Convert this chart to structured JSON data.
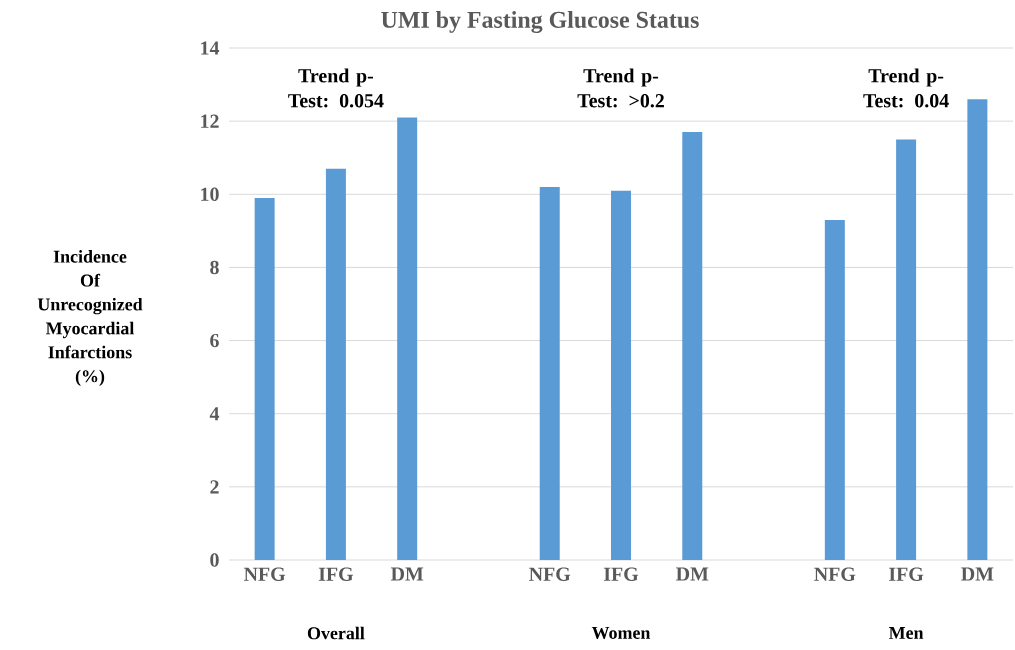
{
  "chart_data": {
    "type": "bar",
    "title": "UMI by Fasting Glucose Status",
    "ylabel": "Incidence Of Unrecognized Myocardial Infarctions (%)",
    "categories": [
      "NFG",
      "IFG",
      "DM",
      null,
      "NFG",
      "IFG",
      "DM",
      null,
      "NFG",
      "IFG",
      "DM"
    ],
    "values": [
      9.9,
      10.7,
      12.1,
      null,
      10.2,
      10.1,
      11.7,
      null,
      9.3,
      11.5,
      12.6
    ],
    "color": "#5b9bd5",
    "ylim": [
      0,
      14
    ],
    "yticks": [
      0,
      2,
      4,
      6,
      8,
      10,
      12,
      14
    ],
    "grid": "y",
    "annotations": [
      "Trend p-Test: 0.054",
      "Trend p-Test: >0.2",
      "Trend p-Test: 0.04",
      "Overall",
      "Women",
      "Men"
    ]
  }
}
